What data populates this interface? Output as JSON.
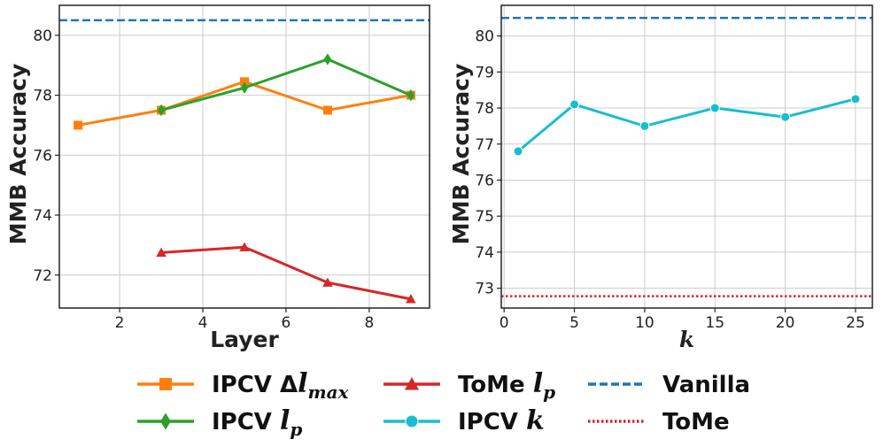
{
  "chart_data": [
    {
      "type": "line",
      "xlabel": "Layer",
      "ylabel": "MMB Accuracy",
      "xlim": [
        0.55,
        9.45
      ],
      "ylim": [
        70.9,
        81.0
      ],
      "xticks": [
        2,
        4,
        6,
        8
      ],
      "yticks": [
        72,
        74,
        76,
        78,
        80
      ],
      "grid": true,
      "series": [
        {
          "name": "IPCV Δl_max",
          "color": "#ff7f0e",
          "marker": "square",
          "x": [
            1,
            3,
            5,
            7,
            9
          ],
          "y": [
            77.0,
            77.5,
            78.45,
            77.5,
            78.0
          ]
        },
        {
          "name": "IPCV l_p",
          "color": "#2ca02c",
          "marker": "diamond",
          "x": [
            3,
            5,
            7,
            9
          ],
          "y": [
            77.5,
            78.25,
            79.2,
            78.0
          ]
        },
        {
          "name": "ToMe l_p",
          "color": "#d62728",
          "marker": "triangle",
          "x": [
            3,
            5,
            7,
            9
          ],
          "y": [
            72.75,
            72.93,
            71.75,
            71.2
          ]
        },
        {
          "name": "Vanilla",
          "color": "#1f77b4",
          "style": "dashed",
          "hline": 80.5
        }
      ]
    },
    {
      "type": "line",
      "xlabel": "k",
      "ylabel": "MMB Accuracy",
      "xlim": [
        -0.2,
        26.2
      ],
      "ylim": [
        72.45,
        80.85
      ],
      "xticks": [
        0,
        5,
        10,
        15,
        20,
        25
      ],
      "yticks": [
        73,
        74,
        75,
        76,
        77,
        78,
        79,
        80
      ],
      "grid": true,
      "series": [
        {
          "name": "IPCV k",
          "color": "#17becf",
          "marker": "circle",
          "x": [
            1,
            5,
            10,
            15,
            20,
            25
          ],
          "y": [
            76.8,
            78.1,
            77.5,
            78.0,
            77.75,
            78.25
          ]
        },
        {
          "name": "Vanilla",
          "color": "#1f77b4",
          "style": "dashed",
          "hline": 80.5
        },
        {
          "name": "ToMe",
          "color": "#d62728",
          "style": "dotted",
          "hline": 72.78
        }
      ]
    }
  ],
  "legend": [
    {
      "label": "IPCV Δ",
      "math": "l",
      "sub": "max",
      "color": "#ff7f0e",
      "marker": "square",
      "style": "solid"
    },
    {
      "label": "IPCV ",
      "math": "l",
      "sub": "p",
      "color": "#2ca02c",
      "marker": "diamond",
      "style": "solid"
    },
    {
      "label": "ToMe ",
      "math": "l",
      "sub": "p",
      "color": "#d62728",
      "marker": "triangle",
      "style": "solid"
    },
    {
      "label": "IPCV ",
      "math": "k",
      "sub": "",
      "color": "#17becf",
      "marker": "circle",
      "style": "solid"
    },
    {
      "label": "Vanilla",
      "math": "",
      "sub": "",
      "color": "#1f77b4",
      "marker": "none",
      "style": "dashed"
    },
    {
      "label": "ToMe",
      "math": "",
      "sub": "",
      "color": "#d62728",
      "marker": "none",
      "style": "dotted"
    }
  ]
}
